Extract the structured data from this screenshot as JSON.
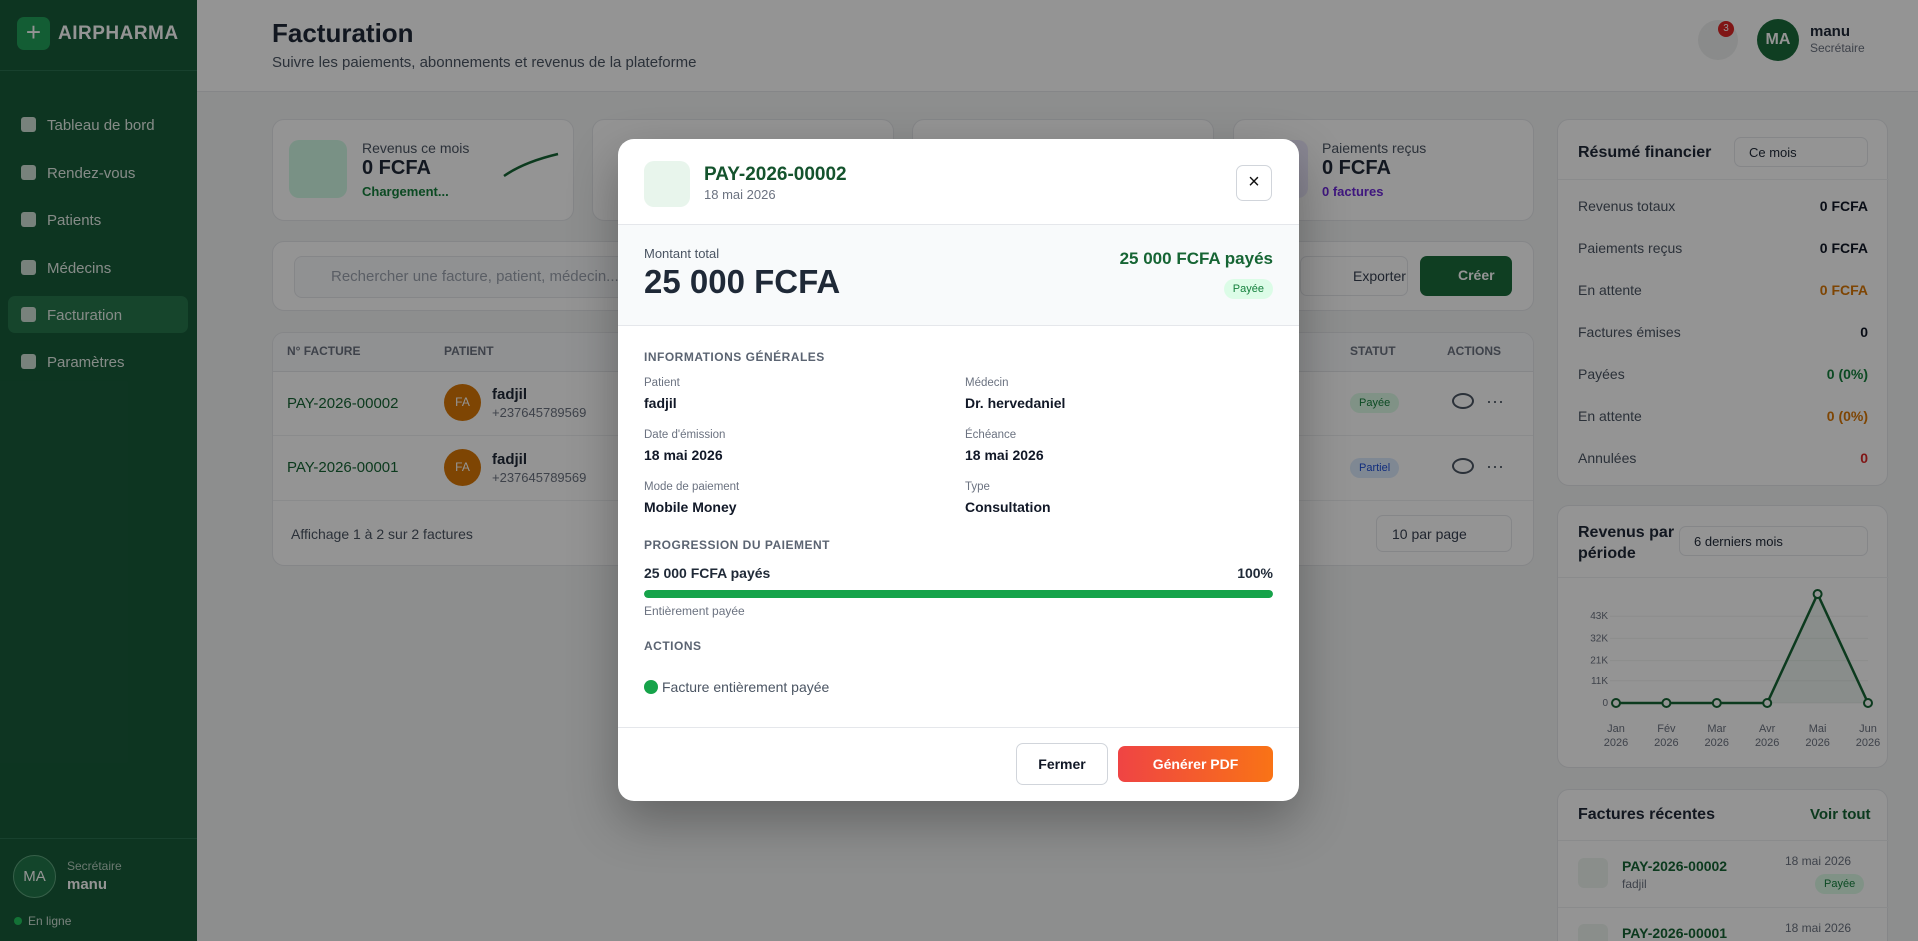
{
  "sidebar": {
    "brand": "AIRPHARMA",
    "nav": [
      "Tableau de bord",
      "Rendez-vous",
      "Patients",
      "Médecins",
      "Facturation",
      "Paramètres"
    ],
    "user": {
      "initials": "MA",
      "role": "Secrétaire",
      "name": "manu",
      "status": "En ligne"
    }
  },
  "header": {
    "title": "Facturation",
    "subtitle": "Suivre les paiements, abonnements et revenus de la plateforme",
    "notifications": "3",
    "user": {
      "initials": "MA",
      "name": "manu",
      "role": "Secrétaire"
    }
  },
  "stats": [
    {
      "label": "Revenus ce mois",
      "value": "0 FCFA",
      "note": "Chargement..."
    },
    {
      "label": "Paiements reçus",
      "value": "0 FCFA",
      "note": "0 factures"
    }
  ],
  "toolbar": {
    "search": "Rechercher une facture, patient, médecin...",
    "export": "Exporter",
    "create": "Créer"
  },
  "table": {
    "columns": [
      "N° FACTURE",
      "PATIENT",
      "STATUT",
      "ACTIONS"
    ],
    "rows": [
      {
        "number": "PAY-2026-00002",
        "initials": "FA",
        "patient": "fadjil",
        "phone": "+237645789569",
        "status": "Payée"
      },
      {
        "number": "PAY-2026-00001",
        "initials": "FA",
        "patient": "fadjil",
        "phone": "+237645789569",
        "status": "Partiel"
      }
    ],
    "footer": "Affichage 1 à 2 sur 2 factures",
    "page_size": "10 par page"
  },
  "summary": {
    "title": "Résumé financier",
    "period": "Ce mois",
    "rows": [
      [
        "Revenus totaux",
        "0 FCFA"
      ],
      [
        "Paiements reçus",
        "0 FCFA"
      ],
      [
        "En attente",
        "0 FCFA"
      ],
      [
        "Factures émises",
        "0"
      ],
      [
        "Payées",
        "0 (0%)"
      ],
      [
        "En attente",
        "0 (0%)"
      ],
      [
        "Annulées",
        "0"
      ]
    ]
  },
  "chart_data": {
    "type": "line",
    "title": "Revenus par période",
    "period": "6 derniers mois",
    "categories": [
      "Jan 2026",
      "Fév 2026",
      "Mar 2026",
      "Avr 2026",
      "Mai 2026",
      "Jun 2026"
    ],
    "values": [
      0,
      0,
      0,
      0,
      54000,
      0
    ],
    "color": "#166534",
    "ylim": [
      0,
      56000
    ],
    "yticks": [
      0,
      {
        "value": 11000,
        "label": "11K"
      },
      {
        "value": 21000,
        "label": "21K"
      },
      {
        "value": 32000,
        "label": "32K"
      },
      {
        "value": 43000,
        "label": "43K"
      }
    ]
  },
  "recent": {
    "title": "Factures récentes",
    "link": "Voir tout",
    "items": [
      {
        "number": "PAY-2026-00002",
        "patient": "fadjil",
        "date": "18 mai 2026",
        "status": "Payée"
      },
      {
        "number": "PAY-2026-00001",
        "date": "18 mai 2026"
      }
    ]
  },
  "modal": {
    "number": "PAY-2026-00002",
    "date": "18 mai 2026",
    "total_label": "Montant total",
    "total": "25 000 FCFA",
    "paid": "25 000 FCFA payés",
    "status": "Payée",
    "info_title": "INFORMATIONS GÉNÉRALES",
    "fields": [
      [
        "Patient",
        "fadjil"
      ],
      [
        "Médecin",
        "Dr. hervedaniel"
      ],
      [
        "Date d'émission",
        "18 mai 2026"
      ],
      [
        "Échéance",
        "18 mai 2026"
      ],
      [
        "Mode de paiement",
        "Mobile Money"
      ],
      [
        "Type",
        "Consultation"
      ]
    ],
    "progress_title": "PROGRESSION DU PAIEMENT",
    "progress_amount": "25 000 FCFA payés",
    "progress": {
      "value": 100,
      "label": "100%"
    },
    "progress_note": "Entièrement payée",
    "actions_title": "ACTIONS",
    "actions_status": "Facture entièrement payée",
    "close": "Fermer",
    "pdf": "Générer PDF"
  }
}
